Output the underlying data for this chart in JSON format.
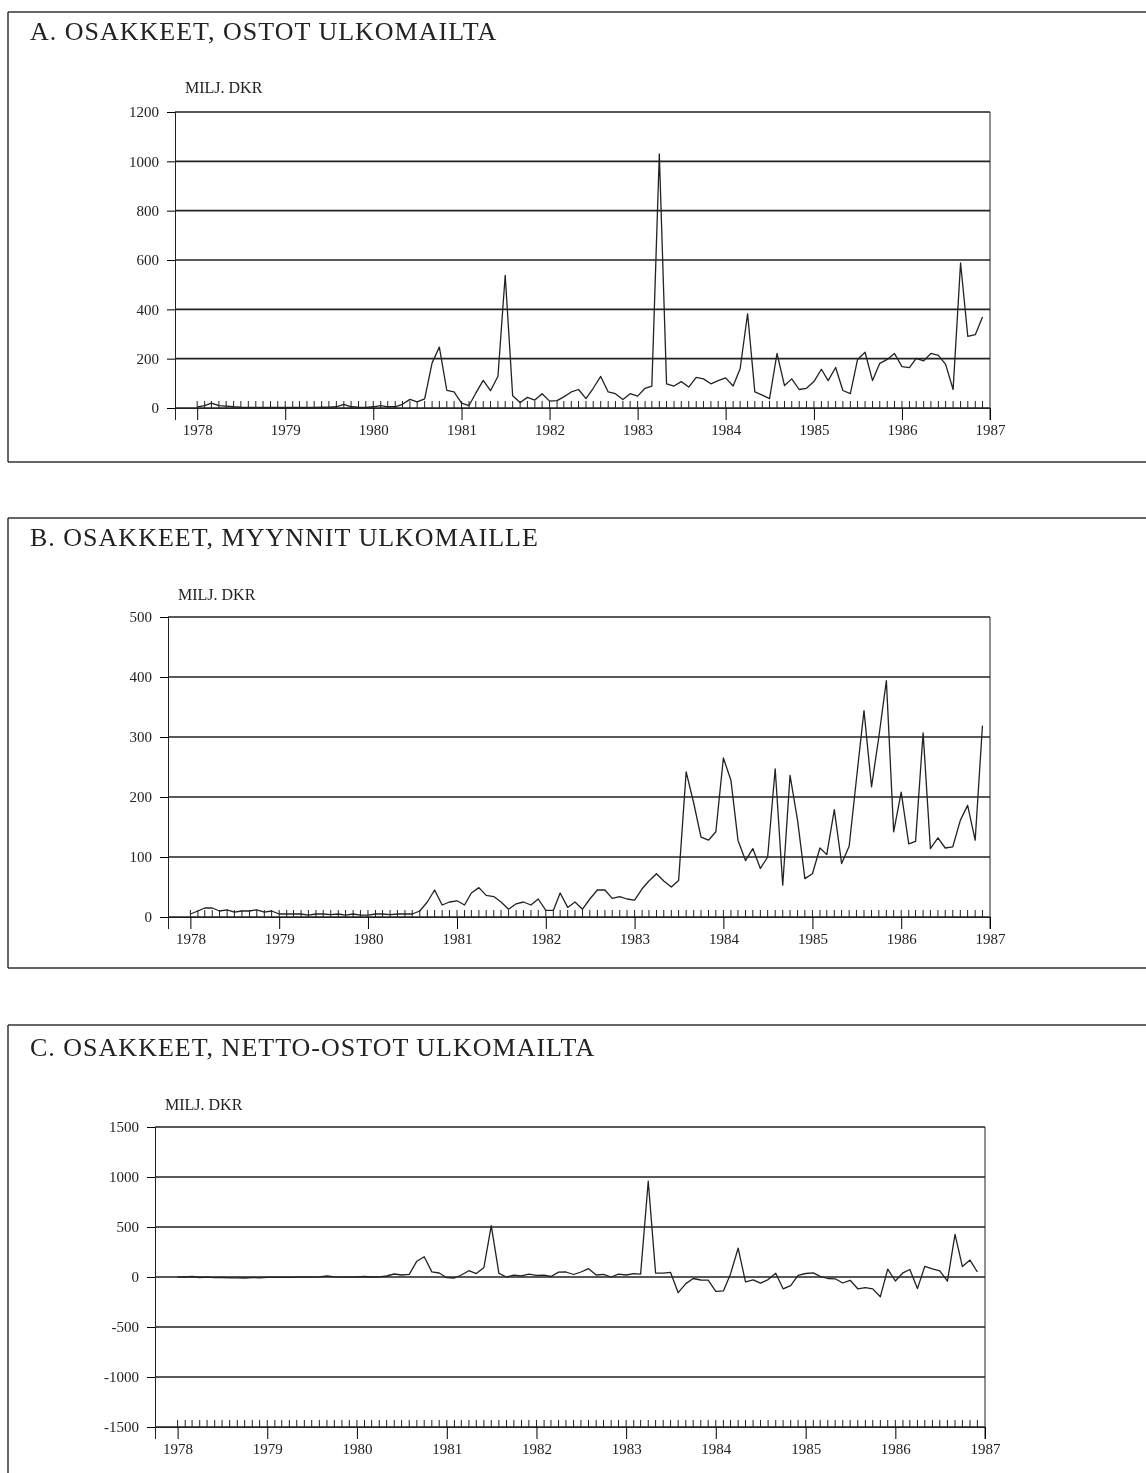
{
  "chart_data": [
    {
      "type": "line",
      "title": "A. OSAKKEET, OSTOT ULKOMAILTA",
      "ylabel": "MILJ. DKR",
      "x": [
        "1978-01",
        "1978-02",
        "1978-03",
        "1978-04",
        "1978-05",
        "1978-06",
        "1978-07",
        "1978-08",
        "1978-09",
        "1978-10",
        "1978-11",
        "1978-12",
        "1979-01",
        "1979-02",
        "1979-03",
        "1979-04",
        "1979-05",
        "1979-06",
        "1979-07",
        "1979-08",
        "1979-09",
        "1979-10",
        "1979-11",
        "1979-12",
        "1980-01",
        "1980-02",
        "1980-03",
        "1980-04",
        "1980-05",
        "1980-06",
        "1980-07",
        "1980-08",
        "1980-09",
        "1980-10",
        "1980-11",
        "1980-12",
        "1981-01",
        "1981-02",
        "1981-03",
        "1981-04",
        "1981-05",
        "1981-06",
        "1981-07",
        "1981-08",
        "1981-09",
        "1981-10",
        "1981-11",
        "1981-12",
        "1982-01",
        "1982-02",
        "1982-03",
        "1982-04",
        "1982-05",
        "1982-06",
        "1982-07",
        "1982-08",
        "1982-09",
        "1982-10",
        "1982-11",
        "1982-12",
        "1983-01",
        "1983-02",
        "1983-03",
        "1983-04",
        "1983-05",
        "1983-06",
        "1983-07",
        "1983-08",
        "1983-09",
        "1983-10",
        "1983-11",
        "1983-12",
        "1984-01",
        "1984-02",
        "1984-03",
        "1984-04",
        "1984-05",
        "1984-06",
        "1984-07",
        "1984-08",
        "1984-09",
        "1984-10",
        "1984-11",
        "1984-12",
        "1985-01",
        "1985-02",
        "1985-03",
        "1985-04",
        "1985-05",
        "1985-06",
        "1985-07",
        "1985-08",
        "1985-09",
        "1985-10",
        "1985-11",
        "1985-12",
        "1986-01",
        "1986-02",
        "1986-03",
        "1986-04",
        "1986-05",
        "1986-06",
        "1986-07",
        "1986-08",
        "1986-09",
        "1986-10",
        "1986-11",
        "1986-12"
      ],
      "series": [
        {
          "color": "#222222",
          "values": [
            5,
            10,
            20,
            10,
            8,
            5,
            3,
            2,
            2,
            2,
            2,
            2,
            2,
            2,
            2,
            2,
            2,
            3,
            3,
            5,
            15,
            5,
            3,
            2,
            5,
            10,
            5,
            5,
            15,
            35,
            25,
            37,
            183,
            247,
            71,
            65,
            20,
            10,
            60,
            112,
            70,
            129,
            538,
            50,
            22,
            43,
            32,
            58,
            28,
            30,
            45,
            65,
            75,
            38,
            80,
            128,
            65,
            58,
            34,
            58,
            48,
            80,
            89,
            1030,
            98,
            89,
            107,
            85,
            124,
            118,
            98,
            111,
            122,
            89,
            159,
            382,
            65,
            52,
            38,
            221,
            91,
            118,
            75,
            80,
            107,
            157,
            111,
            164,
            71,
            58,
            197,
            226,
            111,
            181,
            197,
            221,
            168,
            164,
            201,
            191,
            221,
            213,
            177,
            75,
            588,
            290,
            297,
            369
          ]
        }
      ],
      "xlim": [
        "1977-10",
        "1987-01"
      ],
      "xticks": [
        "1978",
        "1979",
        "1980",
        "1981",
        "1982",
        "1983",
        "1984",
        "1985",
        "1986",
        "1987"
      ],
      "ylim": [
        0,
        1200
      ],
      "yticks": [
        0,
        200,
        400,
        600,
        800,
        1000,
        1200
      ],
      "grid": "y",
      "line_style": "solid"
    },
    {
      "type": "line",
      "title": "B. OSAKKEET, MYYNNIT ULKOMAILLE",
      "ylabel": "MILJ. DKR",
      "x": [
        "1978-01",
        "1978-02",
        "1978-03",
        "1978-04",
        "1978-05",
        "1978-06",
        "1978-07",
        "1978-08",
        "1978-09",
        "1978-10",
        "1978-11",
        "1978-12",
        "1979-01",
        "1979-02",
        "1979-03",
        "1979-04",
        "1979-05",
        "1979-06",
        "1979-07",
        "1979-08",
        "1979-09",
        "1979-10",
        "1979-11",
        "1979-12",
        "1980-01",
        "1980-02",
        "1980-03",
        "1980-04",
        "1980-05",
        "1980-06",
        "1980-07",
        "1980-08",
        "1980-09",
        "1980-10",
        "1980-11",
        "1980-12",
        "1981-01",
        "1981-02",
        "1981-03",
        "1981-04",
        "1981-05",
        "1981-06",
        "1981-07",
        "1981-08",
        "1981-09",
        "1981-10",
        "1981-11",
        "1981-12",
        "1982-01",
        "1982-02",
        "1982-03",
        "1982-04",
        "1982-05",
        "1982-06",
        "1982-07",
        "1982-08",
        "1982-09",
        "1982-10",
        "1982-11",
        "1982-12",
        "1983-01",
        "1983-02",
        "1983-03",
        "1983-04",
        "1983-05",
        "1983-06",
        "1983-07",
        "1983-08",
        "1983-09",
        "1983-10",
        "1983-11",
        "1983-12",
        "1984-01",
        "1984-02",
        "1984-03",
        "1984-04",
        "1984-05",
        "1984-06",
        "1984-07",
        "1984-08",
        "1984-09",
        "1984-10",
        "1984-11",
        "1984-12",
        "1985-01",
        "1985-02",
        "1985-03",
        "1985-04",
        "1985-05",
        "1985-06",
        "1985-07",
        "1985-08",
        "1985-09",
        "1985-10",
        "1985-11",
        "1985-12",
        "1986-01",
        "1986-02",
        "1986-03",
        "1986-04",
        "1986-05",
        "1986-06",
        "1986-07",
        "1986-08",
        "1986-09",
        "1986-10",
        "1986-11",
        "1986-12"
      ],
      "series": [
        {
          "color": "#222222",
          "values": [
            5,
            10,
            15,
            15,
            10,
            12,
            8,
            10,
            10,
            12,
            8,
            10,
            5,
            5,
            5,
            5,
            3,
            5,
            5,
            4,
            5,
            3,
            5,
            3,
            3,
            5,
            5,
            4,
            5,
            5,
            5,
            10,
            25,
            45,
            20,
            25,
            27,
            20,
            40,
            49,
            36,
            34,
            25,
            13,
            22,
            25,
            20,
            30,
            11,
            11,
            40,
            16,
            25,
            13,
            30,
            45,
            45,
            31,
            34,
            30,
            28,
            47,
            60,
            72,
            60,
            50,
            61,
            242,
            190,
            133,
            128,
            142,
            265,
            228,
            128,
            94,
            114,
            81,
            100,
            247,
            53,
            236,
            161,
            64,
            72,
            115,
            104,
            179,
            89,
            118,
            230,
            344,
            217,
            300,
            394,
            142,
            208,
            122,
            126,
            307,
            114,
            132,
            115,
            117,
            161,
            186,
            128,
            319
          ]
        }
      ],
      "xlim": [
        "1977-10",
        "1987-01"
      ],
      "xticks": [
        "1978",
        "1979",
        "1980",
        "1981",
        "1982",
        "1983",
        "1984",
        "1985",
        "1986",
        "1987"
      ],
      "ylim": [
        0,
        500
      ],
      "yticks": [
        0,
        100,
        200,
        300,
        400,
        500
      ],
      "grid": "y",
      "line_style": "solid"
    },
    {
      "type": "line",
      "title": "C. OSAKKEET, NETTO-OSTOT ULKOMAILTA",
      "ylabel": "MILJ. DKR",
      "x": [
        "1978-01",
        "1978-02",
        "1978-03",
        "1978-04",
        "1978-05",
        "1978-06",
        "1978-07",
        "1978-08",
        "1978-09",
        "1978-10",
        "1978-11",
        "1978-12",
        "1979-01",
        "1979-02",
        "1979-03",
        "1979-04",
        "1979-05",
        "1979-06",
        "1979-07",
        "1979-08",
        "1979-09",
        "1979-10",
        "1979-11",
        "1979-12",
        "1980-01",
        "1980-02",
        "1980-03",
        "1980-04",
        "1980-05",
        "1980-06",
        "1980-07",
        "1980-08",
        "1980-09",
        "1980-10",
        "1980-11",
        "1980-12",
        "1981-01",
        "1981-02",
        "1981-03",
        "1981-04",
        "1981-05",
        "1981-06",
        "1981-07",
        "1981-08",
        "1981-09",
        "1981-10",
        "1981-11",
        "1981-12",
        "1982-01",
        "1982-02",
        "1982-03",
        "1982-04",
        "1982-05",
        "1982-06",
        "1982-07",
        "1982-08",
        "1982-09",
        "1982-10",
        "1982-11",
        "1982-12",
        "1983-01",
        "1983-02",
        "1983-03",
        "1983-04",
        "1983-05",
        "1983-06",
        "1983-07",
        "1983-08",
        "1983-09",
        "1983-10",
        "1983-11",
        "1983-12",
        "1984-01",
        "1984-02",
        "1984-03",
        "1984-04",
        "1984-05",
        "1984-06",
        "1984-07",
        "1984-08",
        "1984-09",
        "1984-10",
        "1984-11",
        "1984-12",
        "1985-01",
        "1985-02",
        "1985-03",
        "1985-04",
        "1985-05",
        "1985-06",
        "1985-07",
        "1985-08",
        "1985-09",
        "1985-10",
        "1985-11",
        "1985-12",
        "1986-01",
        "1986-02",
        "1986-03",
        "1986-04",
        "1986-05",
        "1986-06",
        "1986-07",
        "1986-08",
        "1986-09",
        "1986-10",
        "1986-11",
        "1986-12"
      ],
      "series": [
        {
          "color": "#222222",
          "values": [
            0,
            0,
            5,
            -5,
            -2,
            -7,
            -5,
            -8,
            -8,
            -10,
            -6,
            -8,
            -3,
            -3,
            -3,
            -3,
            -1,
            -2,
            -2,
            1,
            10,
            2,
            -2,
            -1,
            2,
            5,
            0,
            1,
            10,
            30,
            20,
            27,
            158,
            202,
            51,
            40,
            -7,
            -10,
            20,
            63,
            34,
            95,
            513,
            37,
            0,
            18,
            12,
            28,
            17,
            19,
            5,
            49,
            50,
            25,
            50,
            83,
            20,
            27,
            0,
            28,
            20,
            33,
            29,
            958,
            38,
            39,
            46,
            -157,
            -66,
            -15,
            -30,
            -31,
            -143,
            -139,
            31,
            288,
            -49,
            -29,
            -62,
            -26,
            38,
            -118,
            -86,
            16,
            35,
            42,
            7,
            -15,
            -18,
            -60,
            -33,
            -118,
            -106,
            -119,
            -197,
            79,
            -40,
            42,
            75,
            -116,
            107,
            81,
            62,
            -42,
            427,
            104,
            169,
            50
          ]
        }
      ],
      "xlim": [
        "1977-10",
        "1987-01"
      ],
      "xticks": [
        "1978",
        "1979",
        "1980",
        "1981",
        "1982",
        "1983",
        "1984",
        "1985",
        "1986",
        "1987"
      ],
      "ylim": [
        -1500,
        1500
      ],
      "yticks": [
        -1500,
        -1000,
        -500,
        0,
        500,
        1000,
        1500
      ],
      "grid": "y",
      "line_style": "solid"
    }
  ]
}
